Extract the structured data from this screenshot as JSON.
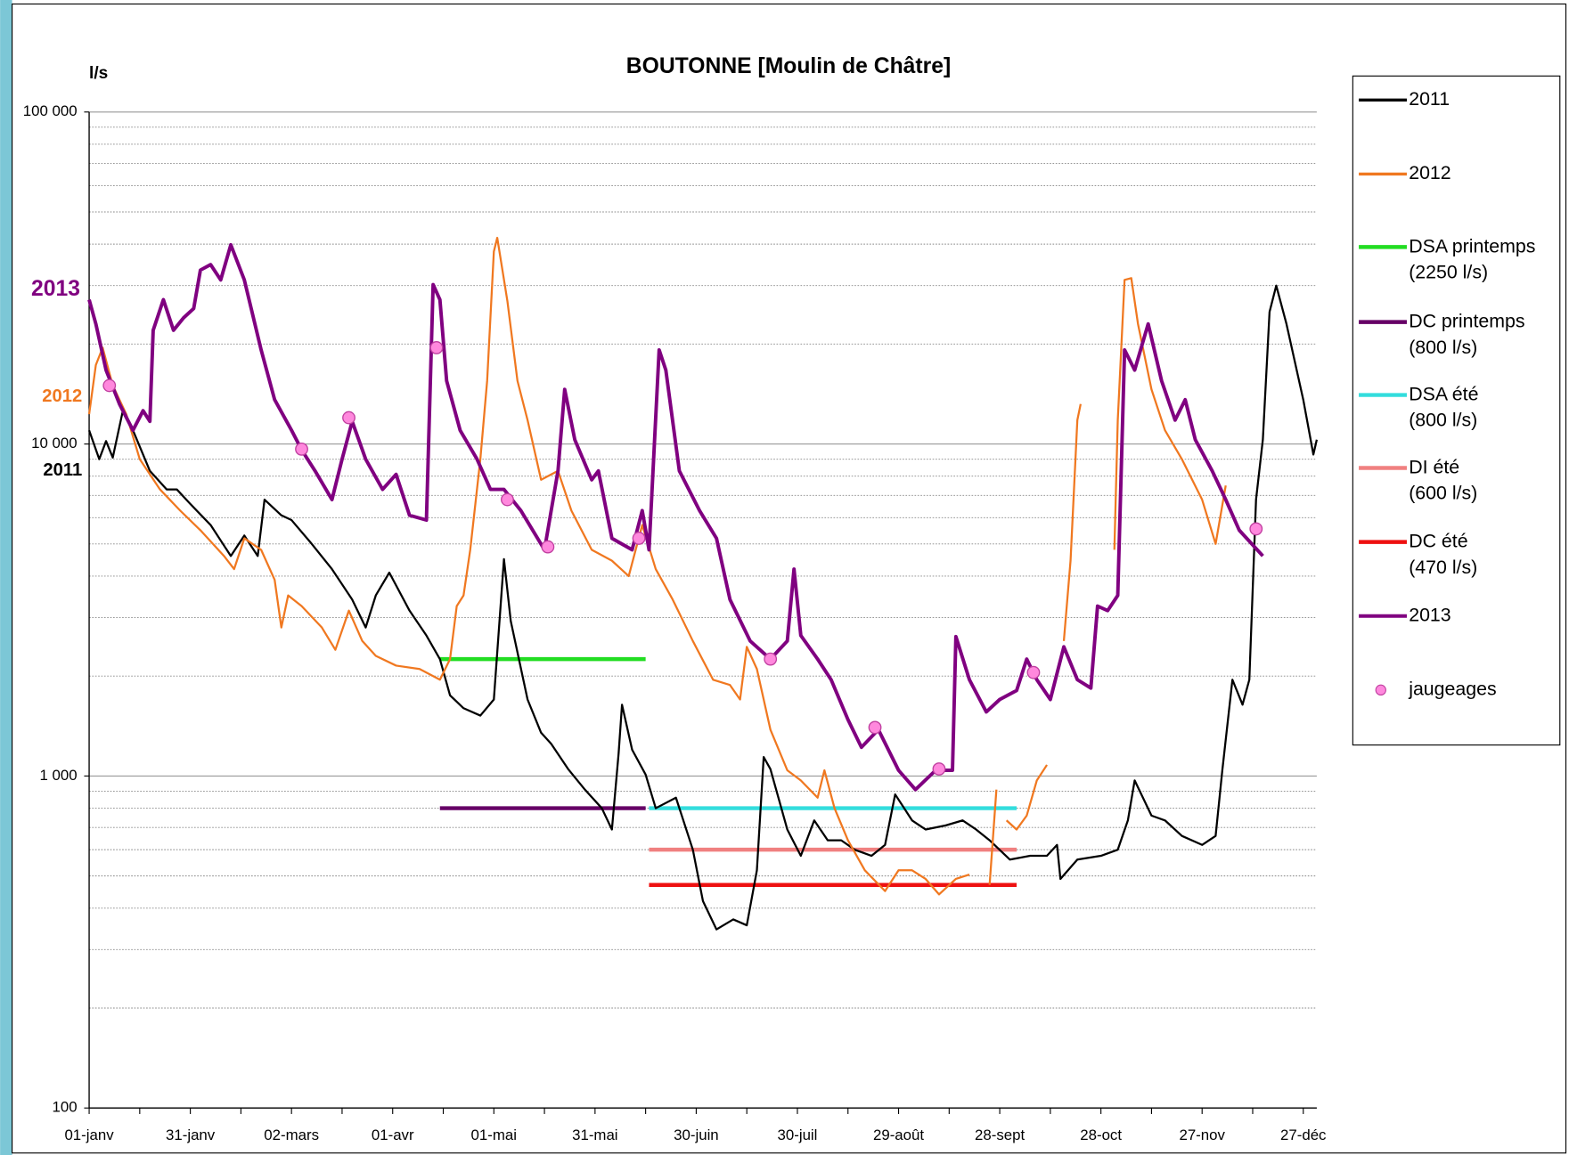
{
  "chart_data": {
    "type": "line",
    "title": "BOUTONNE [Moulin de Châtre]",
    "y_label": "l/s",
    "log_y": true,
    "grid": true,
    "legend": "right",
    "xlim": [
      0,
      364
    ],
    "xticks": [
      {
        "value": 0,
        "label": "01-janv"
      },
      {
        "value": 30,
        "label": "31-janv"
      },
      {
        "value": 60,
        "label": "02-mars"
      },
      {
        "value": 90,
        "label": "01-avr"
      },
      {
        "value": 120,
        "label": "01-mai"
      },
      {
        "value": 150,
        "label": "31-mai"
      },
      {
        "value": 180,
        "label": "30-juin"
      },
      {
        "value": 210,
        "label": "30-juil"
      },
      {
        "value": 240,
        "label": "29-août"
      },
      {
        "value": 270,
        "label": "28-sept"
      },
      {
        "value": 300,
        "label": "28-oct"
      },
      {
        "value": 330,
        "label": "27-nov"
      },
      {
        "value": 360,
        "label": "27-déc"
      }
    ],
    "xminor_ticks": [
      15,
      45,
      75,
      105,
      135,
      165,
      195,
      225,
      255,
      285,
      315,
      345
    ],
    "ylim": [
      100,
      100000
    ],
    "yticks": [
      100,
      {
        "value": 1000,
        "label": "1 000"
      },
      {
        "value": 10000,
        "label": "10 000"
      },
      {
        "value": 100000,
        "label": "100 000"
      }
    ],
    "yminor": [
      200,
      300,
      400,
      500,
      600,
      700,
      800,
      900,
      2000,
      3000,
      4000,
      5000,
      6000,
      7000,
      8000,
      9000,
      20000,
      30000,
      40000,
      50000,
      60000,
      70000,
      80000,
      90000
    ],
    "annotations": [
      {
        "text": "2013",
        "color": "#800080"
      },
      {
        "text": "2012",
        "color": "#f07820"
      },
      {
        "text": "2011",
        "color": "#000000"
      }
    ],
    "series": [
      {
        "name": "2011",
        "type": "line",
        "color": "#000000",
        "width": 2,
        "x": [
          0,
          3,
          5,
          7,
          10,
          13,
          18,
          23,
          26,
          30,
          36,
          42,
          46,
          50,
          52,
          57,
          60,
          66,
          72,
          78,
          82,
          85,
          89,
          95,
          100,
          104,
          107,
          111,
          116,
          120,
          123,
          125,
          130,
          134,
          137,
          142,
          147,
          152,
          155,
          157,
          158,
          161,
          165,
          168,
          174,
          179,
          182,
          186,
          191,
          195,
          198,
          200,
          202,
          207,
          211,
          215,
          219,
          223,
          227,
          232,
          236,
          239,
          244,
          248,
          254,
          259,
          263,
          267,
          273,
          279,
          284,
          287,
          288,
          293,
          300,
          305,
          308,
          310,
          315,
          319,
          324,
          330,
          334,
          336,
          339,
          342,
          344,
          346,
          348,
          350,
          352,
          355,
          360,
          363,
          364
        ],
        "values": [
          11000,
          9000,
          10200,
          9100,
          12600,
          11000,
          8300,
          7300,
          7300,
          6600,
          5700,
          4600,
          5300,
          4600,
          6800,
          6100,
          5900,
          5000,
          4200,
          3400,
          2800,
          3500,
          4100,
          3150,
          2650,
          2250,
          1750,
          1600,
          1520,
          1700,
          4500,
          2930,
          1700,
          1350,
          1250,
          1050,
          910,
          800,
          690,
          1170,
          1640,
          1200,
          1010,
          800,
          860,
          600,
          420,
          345,
          370,
          355,
          520,
          1140,
          1050,
          690,
          575,
          735,
          640,
          640,
          600,
          575,
          620,
          880,
          735,
          690,
          710,
          735,
          690,
          640,
          560,
          575,
          575,
          620,
          490,
          560,
          575,
          600,
          735,
          970,
          760,
          735,
          660,
          620,
          660,
          1040,
          1950,
          1640,
          1950,
          6800,
          10300,
          25000,
          30000,
          23000,
          13600,
          9300,
          10300
        ]
      },
      {
        "name": "2012",
        "type": "line",
        "color": "#f07820",
        "width": 2,
        "x": [
          0,
          2,
          4,
          7,
          11,
          15,
          21,
          27,
          33,
          40,
          43,
          46,
          51,
          55,
          57,
          59,
          63,
          69,
          73,
          77,
          81,
          85,
          91,
          98,
          104,
          107,
          109,
          111,
          113,
          116,
          118,
          120,
          121,
          124,
          127,
          130,
          134,
          139,
          143,
          149,
          155,
          160,
          164,
          168,
          173,
          179,
          185,
          190,
          193,
          195,
          198,
          202,
          207,
          211,
          216,
          218,
          221,
          225,
          230,
          236,
          240,
          244,
          248,
          252,
          257,
          261,
          264,
          267,
          269,
          270,
          272,
          275,
          278,
          281,
          284,
          286,
          289,
          291,
          293,
          294,
          300,
          304,
          305,
          307,
          309,
          311,
          315,
          319,
          324,
          330,
          334,
          337
        ],
        "values": [
          12300,
          17300,
          19500,
          15000,
          12300,
          9000,
          7300,
          6300,
          5500,
          4600,
          4200,
          5200,
          4800,
          3900,
          2800,
          3500,
          3250,
          2800,
          2400,
          3150,
          2550,
          2300,
          2150,
          2100,
          1950,
          2250,
          3250,
          3500,
          4800,
          9000,
          15500,
          38000,
          41800,
          27000,
          15500,
          11800,
          7800,
          8300,
          6300,
          4800,
          4450,
          4000,
          5700,
          4200,
          3400,
          2550,
          1950,
          1880,
          1700,
          2450,
          2100,
          1380,
          1040,
          970,
          860,
          1040,
          800,
          640,
          520,
          450,
          520,
          520,
          490,
          440,
          490,
          505,
          null,
          470,
          910,
          null,
          735,
          690,
          760,
          970,
          1080,
          null,
          2550,
          4450,
          11800,
          13200,
          null,
          4800,
          11800,
          31200,
          31600,
          23000,
          14600,
          11000,
          9000,
          6800,
          5000,
          7500
        ]
      },
      {
        "name": "DSA printemps\n(2250 l/s)",
        "type": "line",
        "color": "#22dd22",
        "width": 4,
        "x": [
          104,
          165
        ],
        "values": [
          2250,
          2250
        ]
      },
      {
        "name": "DC printemps\n(800 l/s)",
        "type": "line",
        "color": "#660066",
        "width": 4,
        "x": [
          104,
          165
        ],
        "values": [
          800,
          800
        ]
      },
      {
        "name": "DSA été\n(800 l/s)",
        "type": "line",
        "color": "#33dddd",
        "width": 4,
        "x": [
          166,
          275
        ],
        "values": [
          800,
          800
        ]
      },
      {
        "name": "DI été\n(600 l/s)",
        "type": "line",
        "color": "#f08080",
        "width": 4,
        "x": [
          166,
          275
        ],
        "values": [
          600,
          600
        ]
      },
      {
        "name": "DC été\n(470 l/s)",
        "type": "line",
        "color": "#ee1111",
        "width": 4,
        "x": [
          166,
          275
        ],
        "values": [
          470,
          470
        ]
      },
      {
        "name": "2013",
        "type": "line",
        "color": "#800080",
        "width": 3.5,
        "x": [
          0,
          2,
          5,
          9,
          13,
          16,
          18,
          19,
          22,
          25,
          28,
          31,
          33,
          36,
          39,
          42,
          46,
          51,
          55,
          60,
          63,
          67,
          72,
          75,
          78,
          82,
          87,
          91,
          95,
          100,
          102,
          104,
          106,
          110,
          115,
          119,
          123,
          128,
          135,
          139,
          141,
          144,
          149,
          151,
          155,
          161,
          164,
          166,
          169,
          171,
          175,
          181,
          186,
          190,
          196,
          202,
          207,
          209,
          211,
          216,
          220,
          225,
          229,
          234,
          240,
          245,
          251,
          256,
          257,
          261,
          266,
          270,
          275,
          278,
          281,
          285,
          289,
          293,
          297,
          299,
          302,
          305,
          307,
          310,
          314,
          318,
          322,
          325,
          328,
          333,
          337,
          341,
          348
        ],
        "values": [
          27200,
          23000,
          16700,
          13200,
          11000,
          12600,
          11700,
          22000,
          27200,
          22000,
          24000,
          25600,
          33400,
          34700,
          31200,
          39800,
          31200,
          19200,
          13600,
          11000,
          9600,
          8300,
          6800,
          9000,
          11700,
          9000,
          7300,
          8100,
          6100,
          5900,
          30200,
          27200,
          15500,
          11000,
          9000,
          7300,
          7300,
          6300,
          4800,
          8300,
          14600,
          10300,
          7800,
          8300,
          5200,
          4800,
          6300,
          4800,
          19200,
          16700,
          8300,
          6300,
          5200,
          3400,
          2550,
          2250,
          2550,
          4200,
          2650,
          2250,
          1950,
          1480,
          1220,
          1380,
          1040,
          910,
          1040,
          1040,
          2630,
          1950,
          1560,
          1700,
          1810,
          2250,
          1950,
          1700,
          2450,
          1950,
          1840,
          3250,
          3150,
          3500,
          19200,
          16700,
          23000,
          15500,
          11800,
          13600,
          10300,
          8300,
          6800,
          5500,
          4600
        ]
      },
      {
        "name": "jaugeages",
        "type": "scatter",
        "color": "#ff88dd",
        "x": [
          6,
          63,
          77,
          103,
          124,
          136,
          163,
          202,
          233,
          252,
          280,
          346
        ],
        "values": [
          15000,
          9650,
          12000,
          19500,
          6800,
          4900,
          5200,
          2250,
          1400,
          1050,
          2050,
          5550
        ]
      }
    ]
  }
}
